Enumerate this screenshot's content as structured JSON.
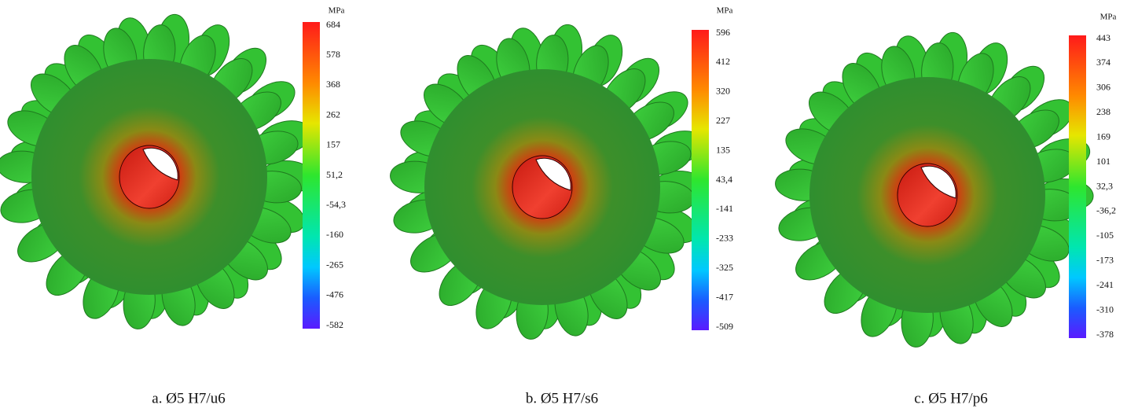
{
  "panels": [
    {
      "unit": "MPa",
      "scale": [
        "684",
        "578",
        "368",
        "262",
        "157",
        "51,2",
        "-54,3",
        "-160",
        "-265",
        "-476",
        "-582"
      ],
      "caption": "a. Ø5 H7/u6"
    },
    {
      "unit": "MPa",
      "scale": [
        "596",
        "412",
        "320",
        "227",
        "135",
        "43,4",
        "-141",
        "-233",
        "-325",
        "-417",
        "-509"
      ],
      "caption": "b. Ø5 H7/s6"
    },
    {
      "unit": "MPa",
      "scale": [
        "443",
        "374",
        "306",
        "238",
        "169",
        "101",
        "32,3",
        "-36,2",
        "-105",
        "-173",
        "-241",
        "-310",
        "-378"
      ],
      "caption": "c. Ø5 H7/p6"
    }
  ]
}
